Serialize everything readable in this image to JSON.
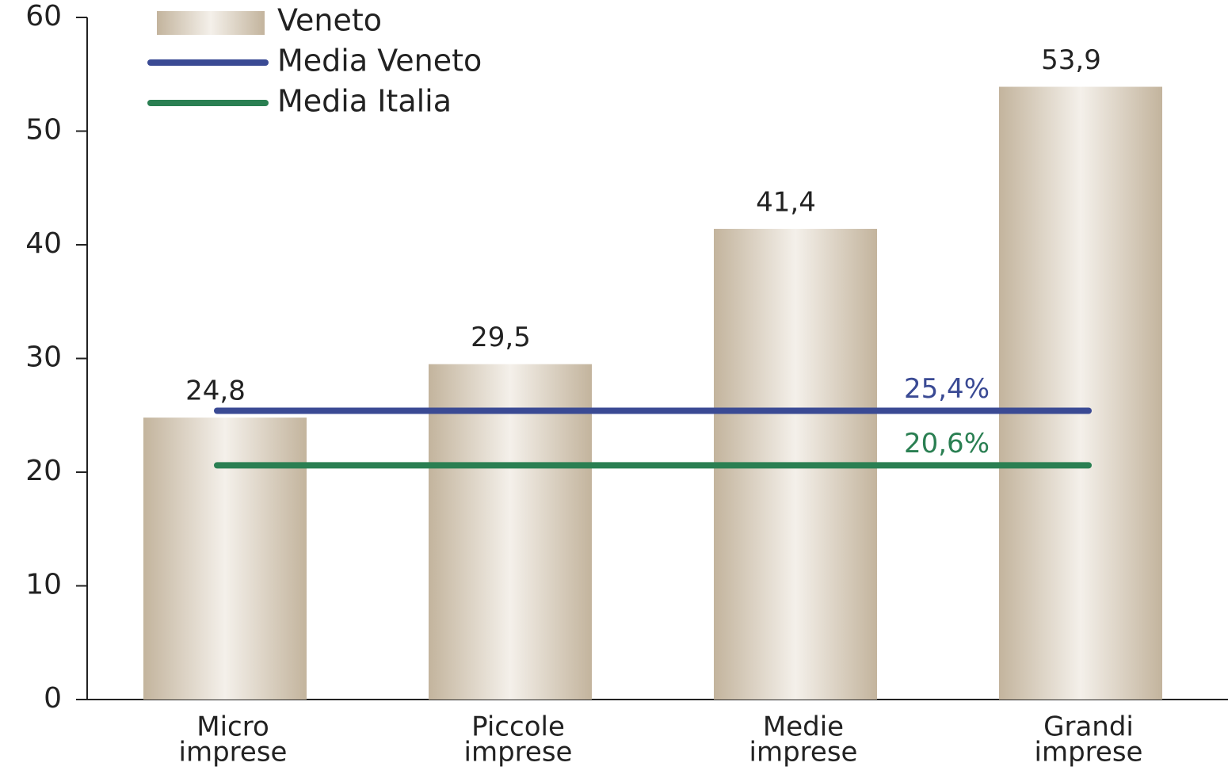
{
  "chart_data": {
    "type": "bar",
    "categories": [
      [
        "Micro",
        "imprese"
      ],
      [
        "Piccole",
        "imprese"
      ],
      [
        "Medie",
        "imprese"
      ],
      [
        "Grandi",
        "imprese"
      ]
    ],
    "series": [
      {
        "name": "Veneto",
        "color": "#c8baa4",
        "values": [
          24.8,
          29.5,
          41.4,
          53.9
        ],
        "value_labels": [
          "24,8",
          "29,5",
          "41,4",
          "53,9"
        ]
      }
    ],
    "reference_lines": [
      {
        "name": "Media Veneto",
        "value": 25.4,
        "label": "25,4%",
        "color": "#3a4a94"
      },
      {
        "name": "Media Italia",
        "value": 20.6,
        "label": "20,6%",
        "color": "#2a7f52"
      }
    ],
    "ylim": [
      0,
      60
    ],
    "yticks": [
      0,
      10,
      20,
      30,
      40,
      50,
      60
    ],
    "legend": "top-left"
  }
}
